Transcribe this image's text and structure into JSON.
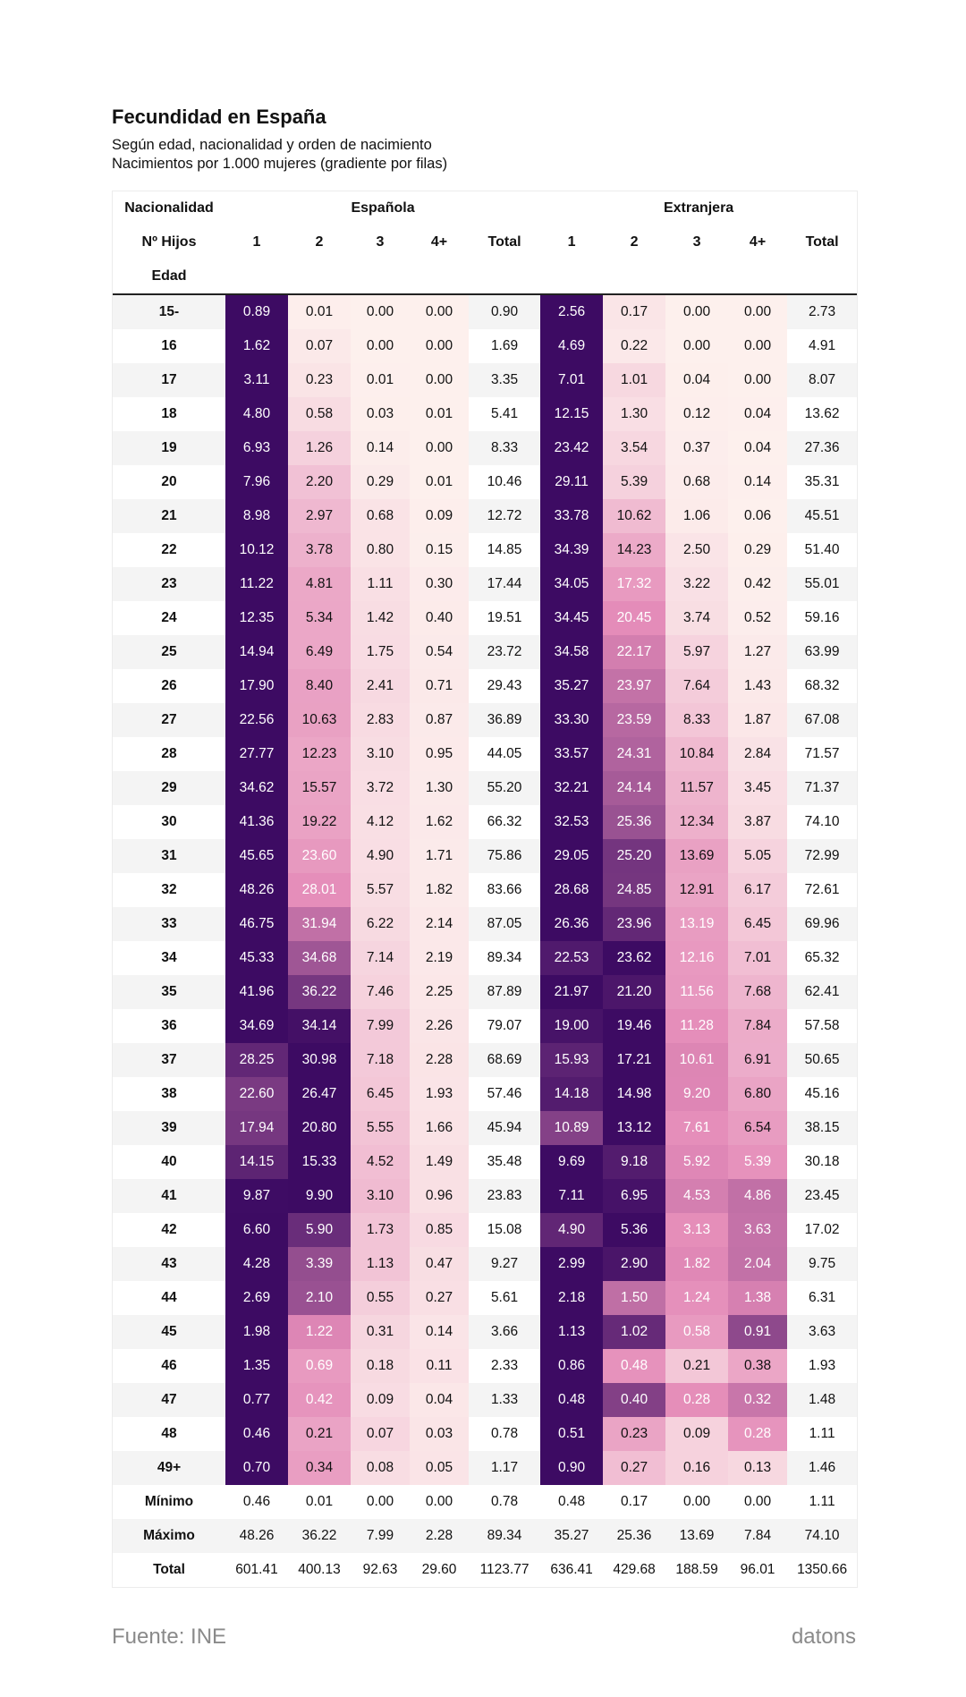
{
  "title": "Fecundidad en España",
  "subtitle_lines": [
    "Según edad, nacionalidad y orden de nacimiento",
    "Nacimientos por 1.000 mujeres (gradiente por filas)"
  ],
  "source": "Fuente: INE",
  "brand": "datons",
  "chart_data": {
    "type": "heatmap",
    "title": "Fecundidad en España",
    "header_labels": {
      "nationality": "Nacionalidad",
      "children": "Nº Hijos",
      "age": "Edad"
    },
    "groups": [
      "Española",
      "Extranjera"
    ],
    "columns": [
      "1",
      "2",
      "3",
      "4+",
      "Total",
      "1",
      "2",
      "3",
      "4+",
      "Total"
    ],
    "gradient": "por filas",
    "colors": {
      "low": "#fdf0ed",
      "mid": "#e48bb8",
      "high": "#3d0b63",
      "alt_row": "#f4f4f4"
    },
    "rows": [
      {
        "age": "15-",
        "values": [
          0.89,
          0.01,
          0.0,
          0.0,
          0.9,
          2.56,
          0.17,
          0.0,
          0.0,
          2.73
        ]
      },
      {
        "age": "16",
        "values": [
          1.62,
          0.07,
          0.0,
          0.0,
          1.69,
          4.69,
          0.22,
          0.0,
          0.0,
          4.91
        ]
      },
      {
        "age": "17",
        "values": [
          3.11,
          0.23,
          0.01,
          0.0,
          3.35,
          7.01,
          1.01,
          0.04,
          0.0,
          8.07
        ]
      },
      {
        "age": "18",
        "values": [
          4.8,
          0.58,
          0.03,
          0.01,
          5.41,
          12.15,
          1.3,
          0.12,
          0.04,
          13.62
        ]
      },
      {
        "age": "19",
        "values": [
          6.93,
          1.26,
          0.14,
          0.0,
          8.33,
          23.42,
          3.54,
          0.37,
          0.04,
          27.36
        ]
      },
      {
        "age": "20",
        "values": [
          7.96,
          2.2,
          0.29,
          0.01,
          10.46,
          29.11,
          5.39,
          0.68,
          0.14,
          35.31
        ]
      },
      {
        "age": "21",
        "values": [
          8.98,
          2.97,
          0.68,
          0.09,
          12.72,
          33.78,
          10.62,
          1.06,
          0.06,
          45.51
        ]
      },
      {
        "age": "22",
        "values": [
          10.12,
          3.78,
          0.8,
          0.15,
          14.85,
          34.39,
          14.23,
          2.5,
          0.29,
          51.4
        ]
      },
      {
        "age": "23",
        "values": [
          11.22,
          4.81,
          1.11,
          0.3,
          17.44,
          34.05,
          17.32,
          3.22,
          0.42,
          55.01
        ]
      },
      {
        "age": "24",
        "values": [
          12.35,
          5.34,
          1.42,
          0.4,
          19.51,
          34.45,
          20.45,
          3.74,
          0.52,
          59.16
        ]
      },
      {
        "age": "25",
        "values": [
          14.94,
          6.49,
          1.75,
          0.54,
          23.72,
          34.58,
          22.17,
          5.97,
          1.27,
          63.99
        ]
      },
      {
        "age": "26",
        "values": [
          17.9,
          8.4,
          2.41,
          0.71,
          29.43,
          35.27,
          23.97,
          7.64,
          1.43,
          68.32
        ]
      },
      {
        "age": "27",
        "values": [
          22.56,
          10.63,
          2.83,
          0.87,
          36.89,
          33.3,
          23.59,
          8.33,
          1.87,
          67.08
        ]
      },
      {
        "age": "28",
        "values": [
          27.77,
          12.23,
          3.1,
          0.95,
          44.05,
          33.57,
          24.31,
          10.84,
          2.84,
          71.57
        ]
      },
      {
        "age": "29",
        "values": [
          34.62,
          15.57,
          3.72,
          1.3,
          55.2,
          32.21,
          24.14,
          11.57,
          3.45,
          71.37
        ]
      },
      {
        "age": "30",
        "values": [
          41.36,
          19.22,
          4.12,
          1.62,
          66.32,
          32.53,
          25.36,
          12.34,
          3.87,
          74.1
        ]
      },
      {
        "age": "31",
        "values": [
          45.65,
          23.6,
          4.9,
          1.71,
          75.86,
          29.05,
          25.2,
          13.69,
          5.05,
          72.99
        ]
      },
      {
        "age": "32",
        "values": [
          48.26,
          28.01,
          5.57,
          1.82,
          83.66,
          28.68,
          24.85,
          12.91,
          6.17,
          72.61
        ]
      },
      {
        "age": "33",
        "values": [
          46.75,
          31.94,
          6.22,
          2.14,
          87.05,
          26.36,
          23.96,
          13.19,
          6.45,
          69.96
        ]
      },
      {
        "age": "34",
        "values": [
          45.33,
          34.68,
          7.14,
          2.19,
          89.34,
          22.53,
          23.62,
          12.16,
          7.01,
          65.32
        ]
      },
      {
        "age": "35",
        "values": [
          41.96,
          36.22,
          7.46,
          2.25,
          87.89,
          21.97,
          21.2,
          11.56,
          7.68,
          62.41
        ]
      },
      {
        "age": "36",
        "values": [
          34.69,
          34.14,
          7.99,
          2.26,
          79.07,
          19.0,
          19.46,
          11.28,
          7.84,
          57.58
        ]
      },
      {
        "age": "37",
        "values": [
          28.25,
          30.98,
          7.18,
          2.28,
          68.69,
          15.93,
          17.21,
          10.61,
          6.91,
          50.65
        ]
      },
      {
        "age": "38",
        "values": [
          22.6,
          26.47,
          6.45,
          1.93,
          57.46,
          14.18,
          14.98,
          9.2,
          6.8,
          45.16
        ]
      },
      {
        "age": "39",
        "values": [
          17.94,
          20.8,
          5.55,
          1.66,
          45.94,
          10.89,
          13.12,
          7.61,
          6.54,
          38.15
        ]
      },
      {
        "age": "40",
        "values": [
          14.15,
          15.33,
          4.52,
          1.49,
          35.48,
          9.69,
          9.18,
          5.92,
          5.39,
          30.18
        ]
      },
      {
        "age": "41",
        "values": [
          9.87,
          9.9,
          3.1,
          0.96,
          23.83,
          7.11,
          6.95,
          4.53,
          4.86,
          23.45
        ]
      },
      {
        "age": "42",
        "values": [
          6.6,
          5.9,
          1.73,
          0.85,
          15.08,
          4.9,
          5.36,
          3.13,
          3.63,
          17.02
        ]
      },
      {
        "age": "43",
        "values": [
          4.28,
          3.39,
          1.13,
          0.47,
          9.27,
          2.99,
          2.9,
          1.82,
          2.04,
          9.75
        ]
      },
      {
        "age": "44",
        "values": [
          2.69,
          2.1,
          0.55,
          0.27,
          5.61,
          2.18,
          1.5,
          1.24,
          1.38,
          6.31
        ]
      },
      {
        "age": "45",
        "values": [
          1.98,
          1.22,
          0.31,
          0.14,
          3.66,
          1.13,
          1.02,
          0.58,
          0.91,
          3.63
        ]
      },
      {
        "age": "46",
        "values": [
          1.35,
          0.69,
          0.18,
          0.11,
          2.33,
          0.86,
          0.48,
          0.21,
          0.38,
          1.93
        ]
      },
      {
        "age": "47",
        "values": [
          0.77,
          0.42,
          0.09,
          0.04,
          1.33,
          0.48,
          0.4,
          0.28,
          0.32,
          1.48
        ]
      },
      {
        "age": "48",
        "values": [
          0.46,
          0.21,
          0.07,
          0.03,
          0.78,
          0.51,
          0.23,
          0.09,
          0.28,
          1.11
        ]
      },
      {
        "age": "49+",
        "values": [
          0.7,
          0.34,
          0.08,
          0.05,
          1.17,
          0.9,
          0.27,
          0.16,
          0.13,
          1.46
        ]
      }
    ],
    "summary_rows": [
      {
        "label": "Mínimo",
        "values": [
          "0.46",
          "0.01",
          "0.00",
          "0.00",
          "0.78",
          "0.48",
          "0.17",
          "0.00",
          "0.00",
          "1.11"
        ]
      },
      {
        "label": "Máximo",
        "values": [
          "48.26",
          "36.22",
          "7.99",
          "2.28",
          "89.34",
          "35.27",
          "25.36",
          "13.69",
          "7.84",
          "74.10"
        ]
      },
      {
        "label": "Total",
        "values": [
          "601.41",
          "400.13",
          "92.63",
          "29.60",
          "1123.77",
          "636.41",
          "429.68",
          "188.59",
          "96.01",
          "1350.66"
        ]
      }
    ]
  }
}
